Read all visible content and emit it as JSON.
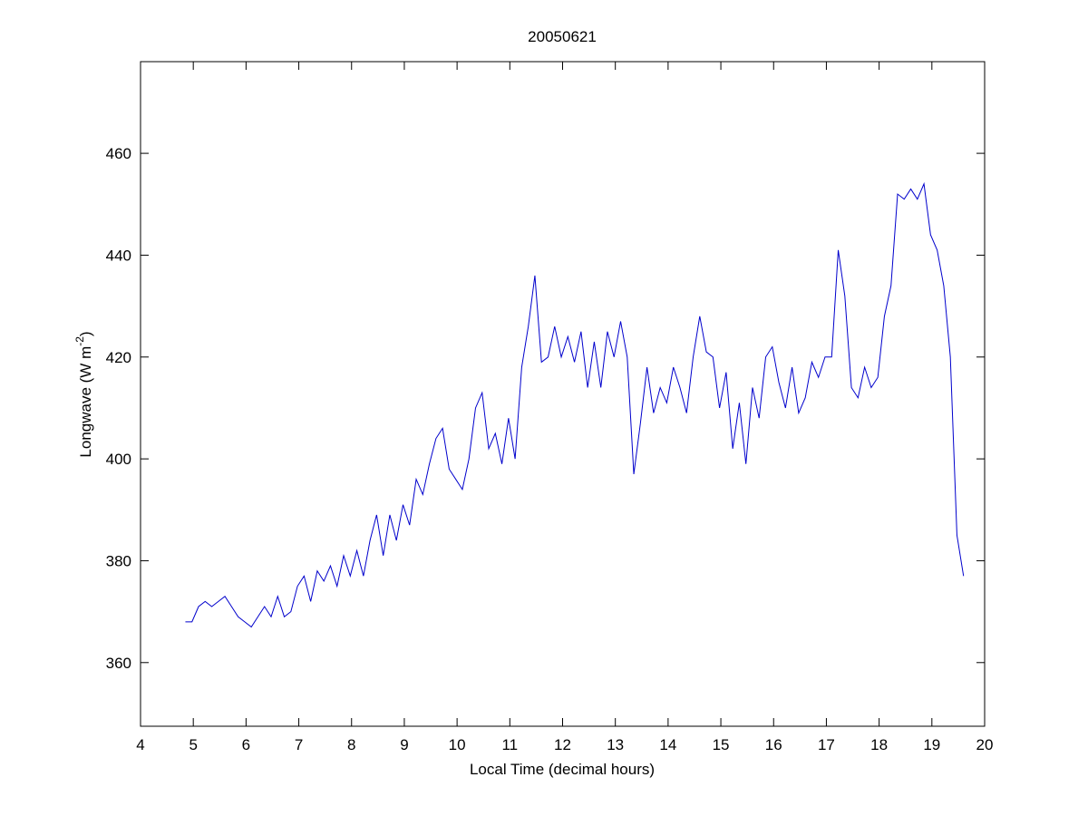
{
  "chart_data": {
    "type": "line",
    "title": "20050621",
    "xlabel": "Local Time (decimal hours)",
    "ylabel": [
      "Longwave (W m",
      "-2",
      ")"
    ],
    "xlim": [
      4,
      20
    ],
    "xticks": [
      4,
      5,
      6,
      7,
      8,
      9,
      10,
      11,
      12,
      13,
      14,
      15,
      16,
      17,
      18,
      19,
      20
    ],
    "ylim": [
      347.5,
      478
    ],
    "yticks": [
      360,
      380,
      400,
      420,
      440,
      460
    ],
    "grid": false,
    "series": [
      {
        "color": "#0000cc",
        "x": [
          4.85,
          4.975,
          5.1,
          5.225,
          5.35,
          5.475,
          5.6,
          5.725,
          5.85,
          5.975,
          6.1,
          6.225,
          6.35,
          6.475,
          6.6,
          6.725,
          6.85,
          6.975,
          7.1,
          7.225,
          7.35,
          7.475,
          7.6,
          7.725,
          7.85,
          7.975,
          8.1,
          8.225,
          8.35,
          8.475,
          8.6,
          8.725,
          8.85,
          8.975,
          9.1,
          9.225,
          9.35,
          9.475,
          9.6,
          9.725,
          9.85,
          9.975,
          10.1,
          10.225,
          10.35,
          10.475,
          10.6,
          10.725,
          10.85,
          10.975,
          11.1,
          11.225,
          11.35,
          11.475,
          11.6,
          11.725,
          11.85,
          11.975,
          12.1,
          12.225,
          12.35,
          12.475,
          12.6,
          12.725,
          12.85,
          12.975,
          13.1,
          13.225,
          13.35,
          13.475,
          13.6,
          13.725,
          13.85,
          13.975,
          14.1,
          14.225,
          14.35,
          14.475,
          14.6,
          14.725,
          14.85,
          14.975,
          15.1,
          15.225,
          15.35,
          15.475,
          15.6,
          15.725,
          15.85,
          15.975,
          16.1,
          16.225,
          16.35,
          16.475,
          16.6,
          16.725,
          16.85,
          16.975,
          17.1,
          17.225,
          17.35,
          17.475,
          17.6,
          17.725,
          17.85,
          17.975,
          18.1,
          18.225,
          18.35,
          18.475,
          18.6,
          18.725,
          18.85,
          18.975,
          19.1,
          19.225,
          19.35,
          19.475,
          19.6
        ],
        "values": [
          368,
          368,
          371,
          372,
          371,
          372,
          373,
          371,
          369,
          368,
          367,
          369,
          371,
          369,
          373,
          369,
          370,
          375,
          377,
          372,
          378,
          376,
          379,
          375,
          381,
          377,
          382,
          377,
          384,
          389,
          381,
          389,
          384,
          391,
          387,
          396,
          393,
          399,
          404,
          406,
          398,
          396,
          394,
          400,
          410,
          413,
          402,
          405,
          399,
          408,
          400,
          418,
          426,
          436,
          419,
          420,
          426,
          420,
          424,
          419,
          425,
          414,
          423,
          414,
          425,
          420,
          427,
          420,
          397,
          407,
          418,
          409,
          414,
          411,
          418,
          414,
          409,
          420,
          428,
          421,
          420,
          410,
          417,
          402,
          411,
          399,
          414,
          408,
          420,
          422,
          415,
          410,
          418,
          409,
          412,
          419,
          416,
          420,
          420,
          441,
          432,
          414,
          412,
          418,
          414,
          416,
          428,
          434,
          452,
          451,
          453,
          451,
          454,
          444,
          441,
          434,
          420,
          385,
          377
        ]
      }
    ]
  }
}
